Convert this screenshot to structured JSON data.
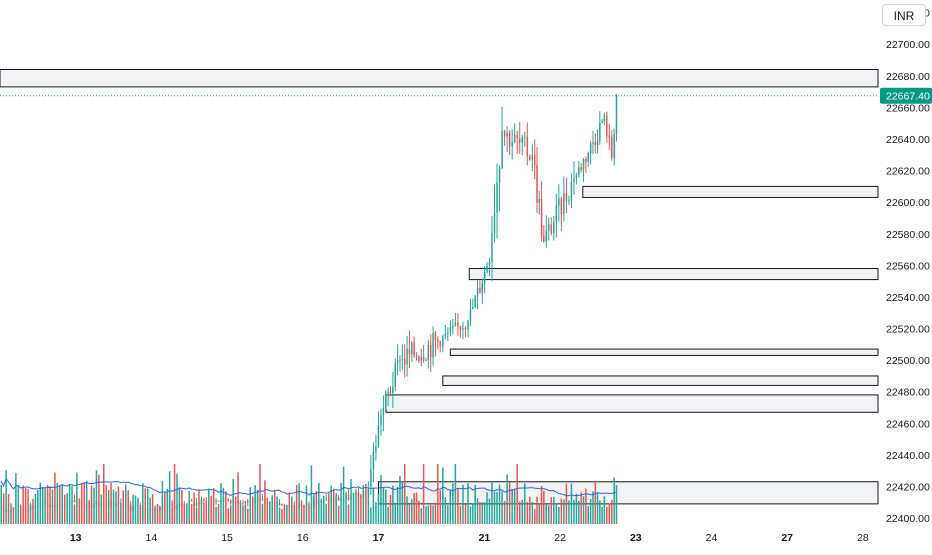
{
  "currency": "INR",
  "last_price": "22667.40",
  "colors": {
    "up": "#26a69a",
    "down": "#ef5350",
    "volume_ma": "#2962ff",
    "zone_fill": "#f2f3f5",
    "zone_border": "#131722",
    "last_price": "#089981",
    "text": "#131722"
  },
  "chart_data": {
    "type": "candlestick",
    "y_axis": {
      "min": 22395,
      "max": 22728,
      "ticks": [
        22400,
        22420,
        22440,
        22460,
        22480,
        22500,
        22520,
        22540,
        22560,
        22580,
        22600,
        22620,
        22640,
        22660,
        22680,
        22700,
        22720
      ],
      "tick_labels": [
        "22400.00",
        "22420.00",
        "22440.00",
        "22460.00",
        "22480.00",
        "22500.00",
        "22520.00",
        "22540.00",
        "22560.00",
        "22580.00",
        "22600.00",
        "22620.00",
        "22640.00",
        "22660.00",
        "22680.00",
        "22700.00",
        "22720.00"
      ]
    },
    "x_axis": {
      "labels": [
        "13",
        "14",
        "15",
        "16",
        "17",
        "21",
        "22",
        "23",
        "24",
        "27",
        "28"
      ],
      "label_positions": [
        1,
        2,
        3,
        4,
        5,
        6.4,
        7.4,
        8.4,
        9.4,
        10.4,
        11.4
      ],
      "range": [
        0,
        11.6
      ]
    },
    "candle_segments": [
      {
        "from": 0.0,
        "to": 1.0,
        "open": 22405,
        "close": 22410,
        "high": 22420,
        "low": 22398,
        "bias": 0
      },
      {
        "from": 1.0,
        "to": 2.0,
        "open": 22410,
        "close": 22406,
        "high": 22420,
        "low": 22398,
        "bias": 0
      },
      {
        "from": 2.0,
        "to": 3.0,
        "open": 22406,
        "close": 22412,
        "high": 22420,
        "low": 22398,
        "bias": 0
      },
      {
        "from": 3.0,
        "to": 4.0,
        "open": 22412,
        "close": 22408,
        "high": 22420,
        "low": 22398,
        "bias": 0
      },
      {
        "from": 4.0,
        "to": 4.85,
        "open": 22408,
        "close": 22415,
        "high": 22422,
        "low": 22400,
        "bias": 0
      },
      {
        "from": 4.85,
        "to": 5.05,
        "open": 22415,
        "close": 22465,
        "high": 22470,
        "low": 22410,
        "bias": 1
      },
      {
        "from": 5.05,
        "to": 5.3,
        "open": 22465,
        "close": 22500,
        "high": 22525,
        "low": 22455,
        "bias": 0.4
      },
      {
        "from": 5.3,
        "to": 5.8,
        "open": 22500,
        "close": 22512,
        "high": 22545,
        "low": 22468,
        "bias": 0
      },
      {
        "from": 5.8,
        "to": 6.2,
        "open": 22512,
        "close": 22525,
        "high": 22548,
        "low": 22505,
        "bias": 0
      },
      {
        "from": 6.2,
        "to": 6.45,
        "open": 22525,
        "close": 22560,
        "high": 22570,
        "low": 22515,
        "bias": 0.6
      },
      {
        "from": 6.45,
        "to": 6.65,
        "open": 22560,
        "close": 22645,
        "high": 22678,
        "low": 22550,
        "bias": 0.7
      },
      {
        "from": 6.65,
        "to": 7.05,
        "open": 22645,
        "close": 22630,
        "high": 22668,
        "low": 22595,
        "bias": -0.2
      },
      {
        "from": 7.05,
        "to": 7.2,
        "open": 22630,
        "close": 22575,
        "high": 22640,
        "low": 22548,
        "bias": -0.8
      },
      {
        "from": 7.2,
        "to": 7.6,
        "open": 22575,
        "close": 22615,
        "high": 22640,
        "low": 22568,
        "bias": 0.3
      },
      {
        "from": 7.6,
        "to": 7.85,
        "open": 22615,
        "close": 22638,
        "high": 22655,
        "low": 22605,
        "bias": 0.4
      },
      {
        "from": 7.85,
        "to": 8.0,
        "open": 22638,
        "close": 22655,
        "high": 22685,
        "low": 22630,
        "bias": 0.2
      },
      {
        "from": 8.0,
        "to": 8.1,
        "open": 22655,
        "close": 22628,
        "high": 22668,
        "low": 22612,
        "bias": -0.5
      },
      {
        "from": 8.1,
        "to": 8.16,
        "open": 22628,
        "close": 22667.4,
        "high": 22674,
        "low": 22622,
        "bias": 1
      }
    ],
    "zones": [
      {
        "top": 22684,
        "bottom": 22673,
        "start": 0
      },
      {
        "top": 22610,
        "bottom": 22603,
        "start": 7.7
      },
      {
        "top": 22558,
        "bottom": 22551,
        "start": 6.2
      },
      {
        "top": 22507,
        "bottom": 22503,
        "start": 5.95
      },
      {
        "top": 22490,
        "bottom": 22484,
        "start": 5.85
      },
      {
        "top": 22478,
        "bottom": 22467,
        "start": 5.1
      },
      {
        "top": 22423,
        "bottom": 22409,
        "start": 5.0
      }
    ],
    "volume": {
      "ma_period": 20,
      "scale_max": 1.0
    }
  }
}
